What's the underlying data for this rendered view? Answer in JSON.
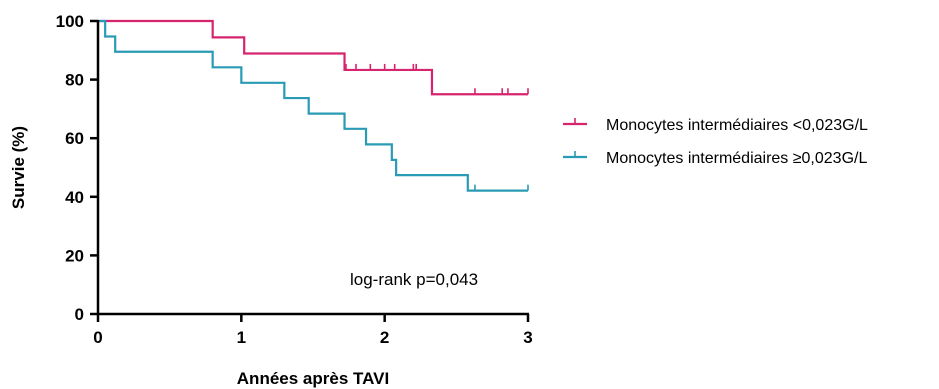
{
  "chart_data": {
    "type": "line",
    "title": "",
    "xlabel": "Années après TAVI",
    "ylabel": "Survie (%)",
    "xlim": [
      0,
      3
    ],
    "ylim": [
      0,
      100
    ],
    "xticks": [
      0,
      1,
      2,
      3
    ],
    "yticks": [
      0,
      20,
      40,
      60,
      80,
      100
    ],
    "x_tick_labels": [
      "0",
      "1",
      "2",
      "3"
    ],
    "y_tick_labels": [
      "0",
      "20",
      "40",
      "60",
      "80",
      "100"
    ],
    "grid": false,
    "legend_position": "right",
    "annotation": "log-rank p=0,043",
    "series": [
      {
        "name": "Monocytes intermédiaires <0,023G/L",
        "color": "#d6246e",
        "steps": [
          [
            0,
            100
          ],
          [
            0.8,
            94.4
          ],
          [
            1.02,
            88.9
          ],
          [
            1.72,
            83.3
          ],
          [
            2.33,
            75.0
          ],
          [
            3.0,
            75.0
          ]
        ],
        "censored": [
          [
            1.72,
            83.3
          ],
          [
            1.73,
            83.3
          ],
          [
            1.8,
            83.3
          ],
          [
            1.9,
            83.3
          ],
          [
            2.0,
            83.3
          ],
          [
            2.07,
            83.3
          ],
          [
            2.2,
            83.3
          ],
          [
            2.22,
            83.3
          ],
          [
            2.63,
            75.0
          ],
          [
            2.82,
            75.0
          ],
          [
            2.86,
            75.0
          ],
          [
            3.0,
            75.0
          ]
        ]
      },
      {
        "name": "Monocytes intermédiaires ≥0,023G/L",
        "color": "#2a9bb4",
        "steps": [
          [
            0,
            100
          ],
          [
            0.05,
            94.7
          ],
          [
            0.12,
            89.5
          ],
          [
            0.8,
            84.2
          ],
          [
            1.0,
            78.9
          ],
          [
            1.3,
            73.7
          ],
          [
            1.47,
            68.4
          ],
          [
            1.72,
            63.2
          ],
          [
            1.87,
            57.9
          ],
          [
            2.05,
            52.6
          ],
          [
            2.08,
            47.4
          ],
          [
            2.58,
            42.1
          ],
          [
            3.0,
            42.1
          ]
        ],
        "censored": [
          [
            2.63,
            42.1
          ],
          [
            3.0,
            42.1
          ]
        ]
      }
    ]
  }
}
